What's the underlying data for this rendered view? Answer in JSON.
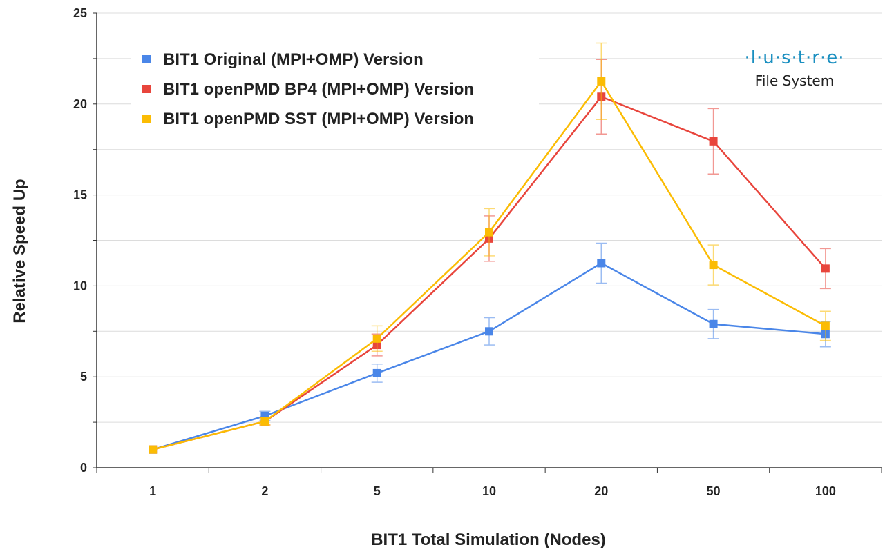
{
  "chart_data": {
    "type": "line",
    "title": "",
    "xlabel": "BIT1 Total Simulation (Nodes)",
    "ylabel": "Relative Speed Up",
    "categories": [
      "1",
      "2",
      "5",
      "10",
      "20",
      "50",
      "100"
    ],
    "ylim": [
      0,
      25
    ],
    "yticks": [
      0,
      5,
      10,
      15,
      20,
      25
    ],
    "grid": true,
    "legend_position": "top-left",
    "series": [
      {
        "name": "BIT1 Original (MPI+OMP) Version",
        "color": "#4a86e8",
        "values": [
          1,
          2.85,
          5.2,
          7.5,
          11.25,
          7.9,
          7.35
        ],
        "error": [
          0,
          0.25,
          0.5,
          0.75,
          1.1,
          0.8,
          0.7
        ]
      },
      {
        "name": "BIT1 openPMD BP4 (MPI+OMP) Version",
        "color": "#e8453c",
        "values": [
          1,
          2.55,
          6.75,
          12.6,
          20.4,
          17.95,
          10.95
        ],
        "error": [
          0,
          0.2,
          0.6,
          1.25,
          2.05,
          1.8,
          1.1
        ]
      },
      {
        "name": "BIT1 openPMD SST (MPI+OMP) Version",
        "color": "#fbbc04",
        "values": [
          1,
          2.55,
          7.1,
          12.95,
          21.25,
          11.15,
          7.8
        ],
        "error": [
          0,
          0.2,
          0.7,
          1.3,
          2.1,
          1.1,
          0.8
        ]
      }
    ]
  },
  "logo": {
    "top": "·l·u·s·t·r·e·",
    "bottom": "File System"
  }
}
